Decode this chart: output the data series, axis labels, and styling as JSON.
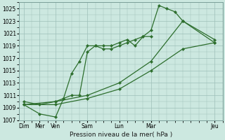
{
  "xlabel": "Pression niveau de la mer( hPa )",
  "bg_color": "#cce8e0",
  "grid_color": "#9dbfb8",
  "line_color": "#2d6e2d",
  "ylim": [
    1007,
    1026
  ],
  "yticks": [
    1007,
    1009,
    1011,
    1013,
    1015,
    1017,
    1019,
    1021,
    1023,
    1025
  ],
  "xtick_positions": [
    0,
    1,
    2,
    4,
    6,
    8,
    12
  ],
  "xtick_labels": [
    "Dim",
    "Mer",
    "Ven",
    "Sam",
    "Lun",
    "Mar",
    "Jeu"
  ],
  "xlim": [
    -0.3,
    12.5
  ],
  "series": [
    {
      "x": [
        0,
        1,
        2,
        2.5,
        3,
        3.5,
        4,
        4.5,
        5,
        5.5,
        6,
        6.5,
        7,
        7.5,
        8
      ],
      "y": [
        1009.5,
        1008.0,
        1007.5,
        1010.5,
        1014.5,
        1016.5,
        1019.0,
        1019.0,
        1018.5,
        1018.5,
        1019.0,
        1019.5,
        1020.0,
        1020.5,
        1020.5
      ]
    },
    {
      "x": [
        0,
        1,
        2,
        2.5,
        3,
        3.5,
        4,
        4.5,
        5,
        5.5,
        6,
        6.5,
        7,
        7.5,
        8,
        8.5,
        9,
        9.5,
        10,
        12
      ],
      "y": [
        1010.0,
        1009.5,
        1010.0,
        1010.5,
        1011.0,
        1011.0,
        1018.0,
        1019.0,
        1019.0,
        1019.0,
        1019.5,
        1020.0,
        1019.0,
        1020.5,
        1021.5,
        1025.5,
        1025.0,
        1024.5,
        1023.0,
        1020.0
      ]
    },
    {
      "x": [
        0,
        2,
        4,
        6,
        8,
        10,
        12
      ],
      "y": [
        1009.5,
        1009.5,
        1010.5,
        1012.0,
        1015.0,
        1018.5,
        1019.5
      ]
    },
    {
      "x": [
        0,
        2,
        4,
        6,
        8,
        10,
        12
      ],
      "y": [
        1009.5,
        1010.0,
        1011.0,
        1013.0,
        1016.5,
        1023.0,
        1019.5
      ]
    }
  ]
}
